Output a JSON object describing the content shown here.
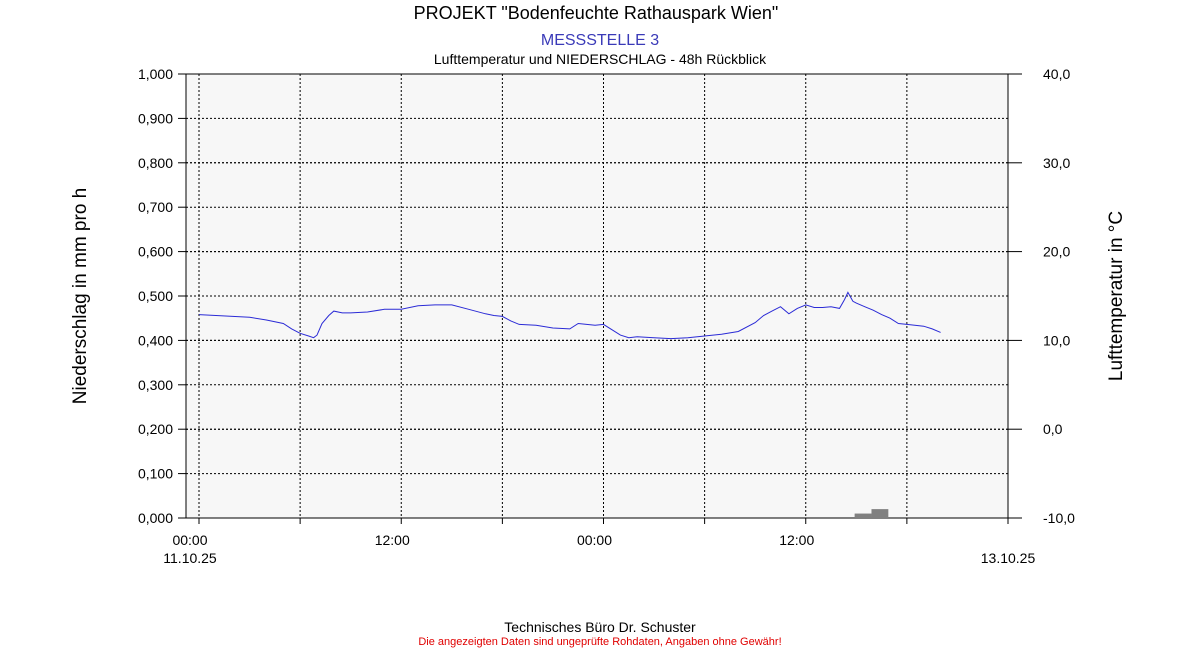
{
  "header": {
    "title": "PROJEKT \"Bodenfeuchte Rathauspark Wien\"",
    "subtitle": "MESSSTELLE 3",
    "subtitle2": "Lufttemperatur und NIEDERSCHLAG - 48h Rückblick"
  },
  "footer": {
    "company": "Technisches Büro Dr. Schuster",
    "disclaimer": "Die angezeigten Daten sind ungeprüfte Rohdaten, Angaben ohne Gewähr!"
  },
  "colors": {
    "plot_bg": "#f7f7f7",
    "temperature_line": "#2b2bd6",
    "precip_bar": "#808080",
    "subtitle": "#3a3ab8",
    "disclaimer": "#e00000"
  },
  "chart_data": {
    "type": "line",
    "xlabel": "",
    "ylabel_left": "Niederschlag in mm pro h",
    "ylabel_right": "Lufttemperatur in °C",
    "xlim_hours": [
      0,
      48
    ],
    "ylim_left": [
      0,
      1
    ],
    "ylim_right": [
      -10,
      40
    ],
    "left_ticks": [
      "0,000",
      "0,100",
      "0,200",
      "0,300",
      "0,400",
      "0,500",
      "0,600",
      "0,700",
      "0,800",
      "0,900",
      "1,000"
    ],
    "right_ticks": [
      "-10,0",
      "0,0",
      "10,0",
      "20,0",
      "30,0",
      "40,0"
    ],
    "x_tick_labels": [
      {
        "hour": 0,
        "time": "00:00",
        "date": "11.10.25"
      },
      {
        "hour": 12,
        "time": "12:00",
        "date": ""
      },
      {
        "hour": 24,
        "time": "00:00",
        "date": ""
      },
      {
        "hour": 36,
        "time": "12:00",
        "date": ""
      },
      {
        "hour": 48,
        "time": "",
        "date": "13.10.25"
      }
    ],
    "grid": true,
    "series": [
      {
        "axis": "right",
        "x": [
          0,
          1,
          2,
          3,
          4,
          5,
          5.5,
          6,
          6.5,
          6.8,
          7,
          7.3,
          7.7,
          8,
          8.5,
          9,
          10,
          11,
          12,
          13,
          14,
          15,
          16,
          17,
          17.5,
          18,
          18.5,
          19,
          20,
          21,
          22,
          22.5,
          23,
          23.5,
          24,
          24.5,
          25,
          25.5,
          26,
          27,
          28,
          29,
          30,
          31,
          32,
          33,
          33.5,
          34,
          34.5,
          35,
          35.5,
          36,
          36.5,
          37,
          37.5,
          38,
          38.3,
          38.5,
          38.8,
          39,
          39.5,
          40,
          40.5,
          41,
          41.5,
          42,
          43,
          43.5,
          44
        ],
        "y": [
          12.9,
          12.8,
          12.7,
          12.6,
          12.3,
          11.9,
          11.3,
          10.8,
          10.5,
          10.3,
          10.6,
          11.9,
          12.8,
          13.3,
          13.1,
          13.1,
          13.2,
          13.5,
          13.5,
          13.9,
          14.0,
          14.0,
          13.5,
          13.0,
          12.8,
          12.7,
          12.2,
          11.8,
          11.7,
          11.4,
          11.3,
          11.9,
          11.8,
          11.7,
          11.8,
          11.2,
          10.6,
          10.3,
          10.4,
          10.3,
          10.2,
          10.3,
          10.5,
          10.7,
          11.0,
          12.0,
          12.8,
          13.3,
          13.8,
          13.0,
          13.6,
          14.0,
          13.7,
          13.7,
          13.8,
          13.6,
          14.6,
          15.4,
          14.4,
          14.2,
          13.8,
          13.4,
          12.9,
          12.5,
          11.9,
          11.8,
          11.6,
          11.3,
          10.9
        ]
      },
      {
        "axis": "left",
        "type": "bar",
        "bars": [
          {
            "x_start": 38.9,
            "x_end": 39.9,
            "value": 0.01
          },
          {
            "x_start": 39.9,
            "x_end": 40.9,
            "value": 0.02
          }
        ]
      }
    ]
  }
}
